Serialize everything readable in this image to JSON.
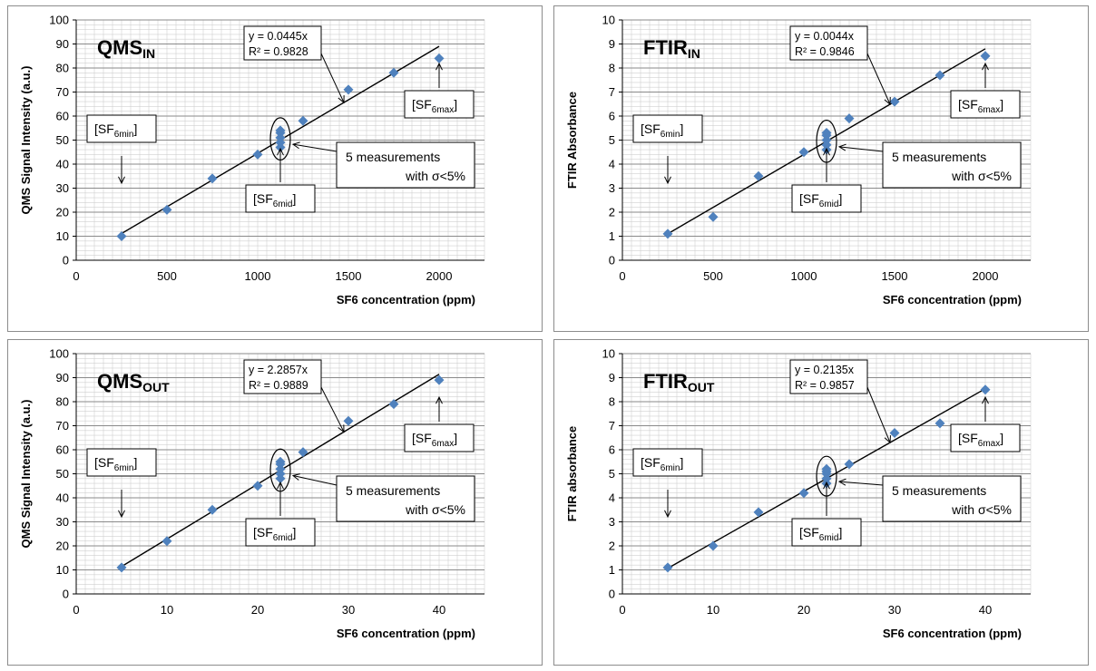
{
  "chart_data": [
    {
      "type": "scatter",
      "panel_title": "QMS",
      "panel_title_sub": "IN",
      "xlabel": "SF6 concentration (ppm)",
      "ylabel": "QMS Signal Intensity (a.u.)",
      "xlim": [
        0,
        2250
      ],
      "ylim": [
        0,
        100
      ],
      "xticks": [
        0,
        500,
        1000,
        1500,
        2000
      ],
      "yticks": [
        0,
        10,
        20,
        30,
        40,
        50,
        60,
        70,
        80,
        90,
        100
      ],
      "grid": true,
      "x": [
        250,
        500,
        750,
        1000,
        1125,
        1125,
        1125,
        1125,
        1125,
        1250,
        1500,
        1750,
        2000
      ],
      "y": [
        10,
        21,
        34,
        44,
        47,
        49,
        51,
        53,
        54,
        58,
        71,
        78,
        84
      ],
      "trendline": {
        "slope": 0.0445,
        "x_range": [
          250,
          2000
        ]
      },
      "equation": "y = 0.0445x",
      "r2": "R² = 0.9828",
      "labels": {
        "min": "[SF",
        "min_sub": "6min",
        "mid": "[SF",
        "mid_sub": "6mid",
        "max": "[SF",
        "max_sub": "6max",
        "close": "]"
      },
      "note_line1": "5 measurements",
      "note_line2": "with σ<5%",
      "marker_color": "#4f81bd"
    },
    {
      "type": "scatter",
      "panel_title": "FTIR",
      "panel_title_sub": "IN",
      "xlabel": "SF6 concentration (ppm)",
      "ylabel": "FTIR Absorbance",
      "xlim": [
        0,
        2250
      ],
      "ylim": [
        0,
        10
      ],
      "xticks": [
        0,
        500,
        1000,
        1500,
        2000
      ],
      "yticks": [
        0,
        1,
        2,
        3,
        4,
        5,
        6,
        7,
        8,
        9,
        10
      ],
      "grid": true,
      "x": [
        250,
        500,
        750,
        1000,
        1125,
        1125,
        1125,
        1125,
        1125,
        1250,
        1500,
        1750,
        2000
      ],
      "y": [
        1.1,
        1.8,
        3.5,
        4.5,
        4.6,
        4.8,
        5.0,
        5.2,
        5.3,
        5.9,
        6.6,
        7.7,
        8.5
      ],
      "trendline": {
        "slope": 0.0044,
        "x_range": [
          250,
          2000
        ]
      },
      "equation": "y = 0.0044x",
      "r2": "R² = 0.9846",
      "labels": {
        "min": "[SF",
        "min_sub": "6min",
        "mid": "[SF",
        "mid_sub": "6mid",
        "max": "[SF",
        "max_sub": "6max",
        "close": "]"
      },
      "note_line1": "5 measurements",
      "note_line2": "with σ<5%",
      "marker_color": "#4f81bd"
    },
    {
      "type": "scatter",
      "panel_title": "QMS",
      "panel_title_sub": "OUT",
      "xlabel": "SF6 concentration (ppm)",
      "ylabel": "QMS Signal Intensity (a.u.)",
      "xlim": [
        0,
        45
      ],
      "ylim": [
        0,
        100
      ],
      "xticks": [
        0,
        10,
        20,
        30,
        40
      ],
      "yticks": [
        0,
        10,
        20,
        30,
        40,
        50,
        60,
        70,
        80,
        90,
        100
      ],
      "grid": true,
      "x": [
        5,
        10,
        15,
        20,
        22.5,
        22.5,
        22.5,
        22.5,
        22.5,
        25,
        30,
        35,
        40
      ],
      "y": [
        11,
        22,
        35,
        45,
        48,
        50,
        52,
        54,
        55,
        59,
        72,
        79,
        89
      ],
      "trendline": {
        "slope": 2.2857,
        "x_range": [
          5,
          40
        ]
      },
      "equation": "y = 2.2857x",
      "r2": "R² = 0.9889",
      "labels": {
        "min": "[SF",
        "min_sub": "6min",
        "mid": "[SF",
        "mid_sub": "6mid",
        "max": "[SF",
        "max_sub": "6max",
        "close": "]"
      },
      "note_line1": "5 measurements",
      "note_line2": "with σ<5%",
      "marker_color": "#4f81bd"
    },
    {
      "type": "scatter",
      "panel_title": "FTIR",
      "panel_title_sub": "OUT",
      "xlabel": "SF6 concentration (ppm)",
      "ylabel": "FTIR absorbance",
      "xlim": [
        0,
        45
      ],
      "ylim": [
        0,
        10
      ],
      "xticks": [
        0,
        10,
        20,
        30,
        40
      ],
      "yticks": [
        0,
        1,
        2,
        3,
        4,
        5,
        6,
        7,
        8,
        9,
        10
      ],
      "grid": true,
      "x": [
        5,
        10,
        15,
        20,
        22.5,
        22.5,
        22.5,
        22.5,
        22.5,
        25,
        30,
        35,
        40
      ],
      "y": [
        1.1,
        2.0,
        3.4,
        4.2,
        4.6,
        4.8,
        5.0,
        5.1,
        5.2,
        5.4,
        6.7,
        7.1,
        8.5
      ],
      "trendline": {
        "slope": 0.2135,
        "x_range": [
          5,
          40
        ]
      },
      "equation": "y = 0.2135x",
      "r2": "R² = 0.9857",
      "labels": {
        "min": "[SF",
        "min_sub": "6min",
        "mid": "[SF",
        "mid_sub": "6mid",
        "max": "[SF",
        "max_sub": "6max",
        "close": "]"
      },
      "note_line1": "5 measurements",
      "note_line2": "with σ<5%",
      "marker_color": "#4f81bd"
    }
  ]
}
